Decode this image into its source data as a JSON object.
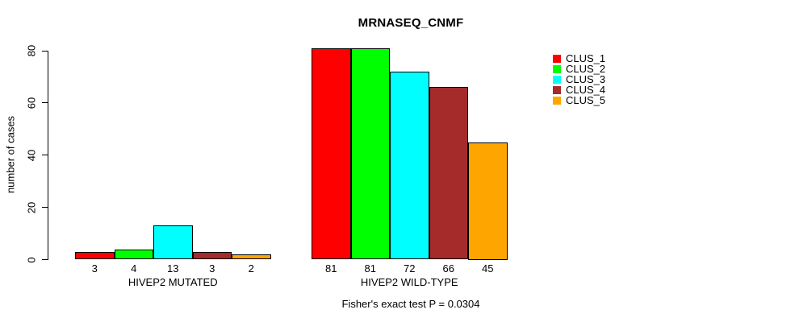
{
  "figure": {
    "background": "#FFFFFF"
  },
  "chart_data": {
    "type": "bar",
    "title": "MRNASEQ_CNMF",
    "ylabel": "number of cases",
    "xlabel": "",
    "annotation": "Fisher's exact test P = 0.0304",
    "ylim": [
      0,
      80
    ],
    "yticks": [
      0,
      20,
      40,
      60,
      80
    ],
    "grid": false,
    "legend_position": "topright",
    "bar_border_color": "#000000",
    "categories": [
      "HIVEP2 MUTATED",
      "HIVEP2 WILD-TYPE"
    ],
    "series": [
      {
        "name": "CLUS_1",
        "color": "#FF0000",
        "values": [
          3,
          81
        ]
      },
      {
        "name": "CLUS_2",
        "color": "#00FF00",
        "values": [
          4,
          81
        ]
      },
      {
        "name": "CLUS_3",
        "color": "#00FFFF",
        "values": [
          13,
          72
        ]
      },
      {
        "name": "CLUS_4",
        "color": "#A52A2A",
        "values": [
          3,
          66
        ]
      },
      {
        "name": "CLUS_5",
        "color": "#FFA500",
        "values": [
          2,
          45
        ]
      }
    ]
  }
}
